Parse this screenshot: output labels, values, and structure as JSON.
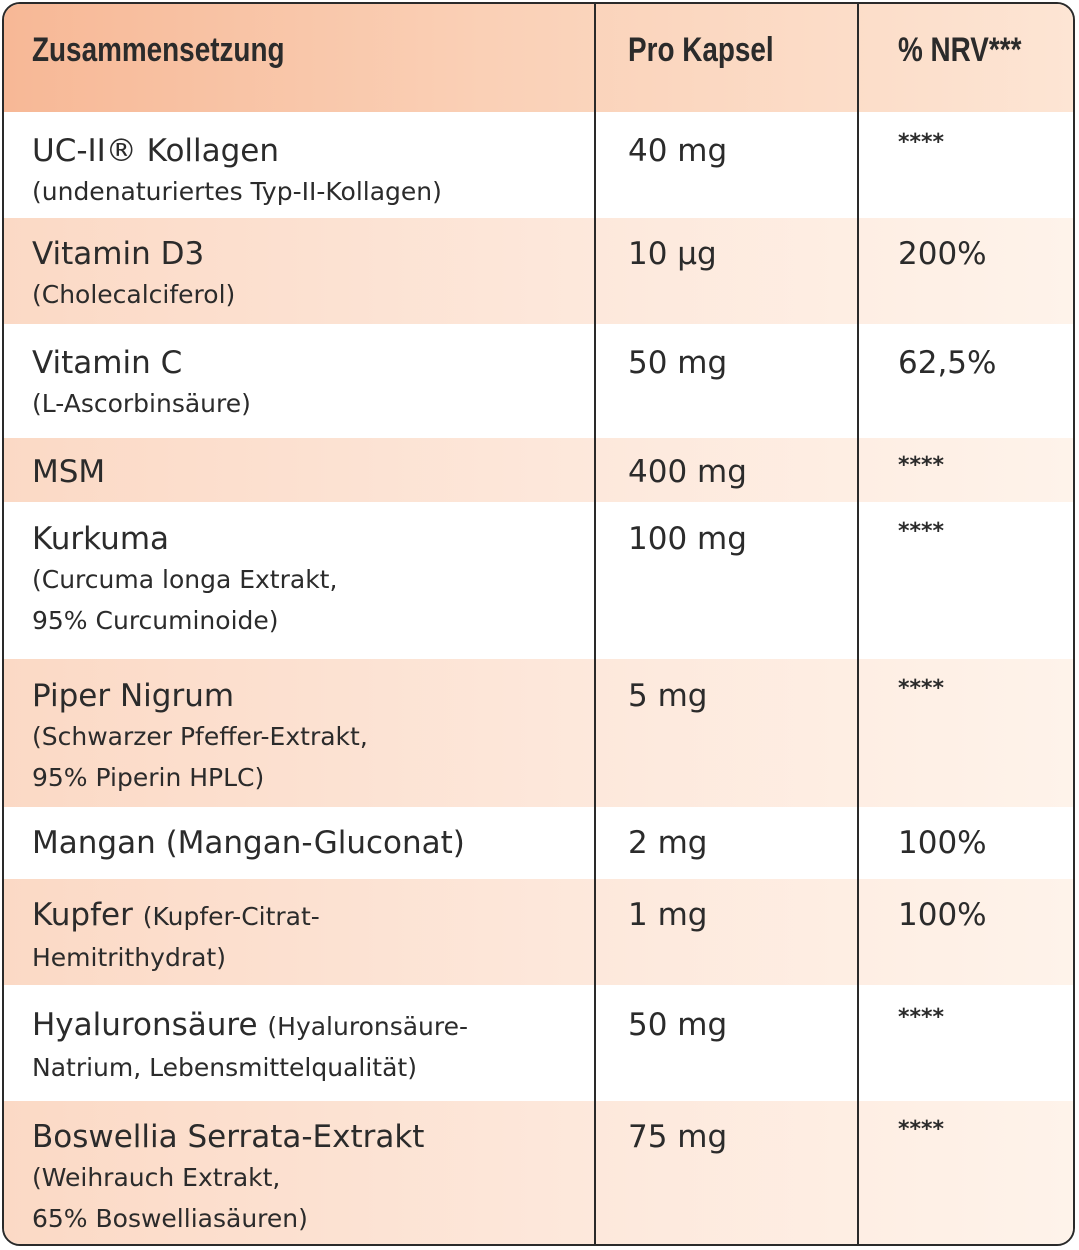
{
  "header": {
    "col1": "Zusammensetzung",
    "col2": "Pro Kapsel",
    "col3": "% NRV***"
  },
  "rows": [
    {
      "name": "UC-II® Kollagen",
      "sub": "(undenaturiertes Typ-II-Kollagen)",
      "amount": "40 mg",
      "nrv": "****"
    },
    {
      "name": "Vitamin D3",
      "sub": "(Cholecalciferol)",
      "amount": "10 µg",
      "nrv": "200%"
    },
    {
      "name": "Vitamin C",
      "sub": "(L-Ascorbinsäure)",
      "amount": "50 mg",
      "nrv": "62,5%"
    },
    {
      "name": "MSM",
      "amount": "400 mg",
      "nrv": "****"
    },
    {
      "name": "Kurkuma",
      "sub1": "(Curcuma longa Extrakt,",
      "sub2": "95% Curcuminoide)",
      "amount": "100 mg",
      "nrv": "****"
    },
    {
      "name": "Piper Nigrum",
      "sub1": "(Schwarzer Pfeffer-Extrakt,",
      "sub2": "95% Piperin HPLC)",
      "amount": "5 mg",
      "nrv": "****"
    },
    {
      "name": "Mangan (Mangan-Gluconat)",
      "amount": "2 mg",
      "nrv": "100%"
    },
    {
      "name": "Kupfer",
      "inline": "(Kupfer-Citrat-",
      "sub": "Hemitrithydrat)",
      "amount": "1 mg",
      "nrv": "100%"
    },
    {
      "name": "Hyaluronsäure",
      "inline": "(Hyaluronsäure-",
      "sub": "Natrium, Lebensmittelqualität)",
      "amount": "50 mg",
      "nrv": "****"
    },
    {
      "name": "Boswellia Serrata-Extrakt",
      "sub1": "(Weihrauch Extrakt,",
      "sub2": "65% Boswelliasäuren)",
      "amount": "75 mg",
      "nrv": "****"
    }
  ],
  "colors": {
    "header_gradient_start": "#f7b896",
    "header_gradient_end": "#fde5d4",
    "shaded_row": "#fbd9c5",
    "border": "#2a2a2a",
    "text": "#2b2b2b"
  }
}
